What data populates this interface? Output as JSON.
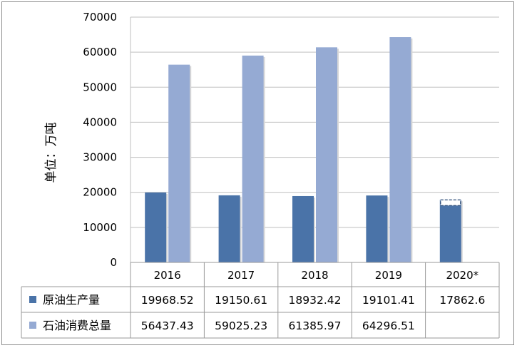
{
  "chart_data": {
    "type": "bar",
    "ylabel": "单位：万吨",
    "ylim": [
      0,
      70000
    ],
    "y_ticks": [
      "0",
      "10000",
      "20000",
      "30000",
      "40000",
      "50000",
      "60000",
      "70000"
    ],
    "grid": true,
    "legend_placement": "data table rows",
    "categories": [
      "2016",
      "2017",
      "2018",
      "2019",
      "2020*"
    ],
    "series": [
      {
        "name": "原油生产量",
        "color": "#4a73a8",
        "values": [
          19968.52,
          19150.61,
          18932.42,
          19101.41,
          17862.6
        ],
        "labels": [
          "19968.52",
          "19150.61",
          "18932.42",
          "19101.41",
          "17862.6"
        ],
        "projected_outline_last": true
      },
      {
        "name": "石油消费总量",
        "color": "#95aad3",
        "values": [
          56437.43,
          59025.23,
          61385.97,
          64296.51,
          null
        ],
        "labels": [
          "56437.43",
          "59025.23",
          "61385.97",
          "64296.51",
          ""
        ]
      }
    ]
  }
}
